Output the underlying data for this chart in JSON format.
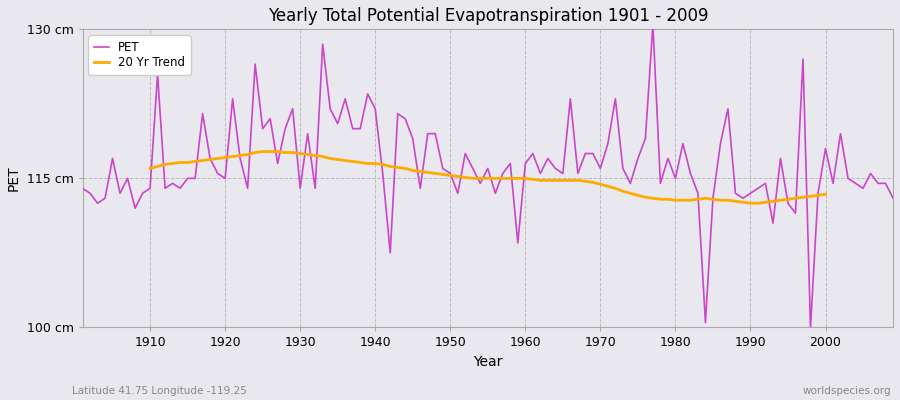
{
  "title": "Yearly Total Potential Evapotranspiration 1901 - 2009",
  "xlabel": "Year",
  "ylabel": "PET",
  "subtitle_left": "Latitude 41.75 Longitude -119.25",
  "subtitle_right": "worldspecies.org",
  "ylim": [
    100,
    130
  ],
  "xlim": [
    1901,
    2009
  ],
  "yticks": [
    100,
    115,
    130
  ],
  "ytick_labels": [
    "100 cm",
    "115 cm",
    "130 cm"
  ],
  "xticks": [
    1910,
    1920,
    1930,
    1940,
    1950,
    1960,
    1970,
    1980,
    1990,
    2000
  ],
  "pet_color": "#cc44cc",
  "trend_color": "#ffaa00",
  "bg_color": "#e8e8ee",
  "pet_label": "PET",
  "trend_label": "20 Yr Trend",
  "years": [
    1901,
    1902,
    1903,
    1904,
    1905,
    1906,
    1907,
    1908,
    1909,
    1910,
    1911,
    1912,
    1913,
    1914,
    1915,
    1916,
    1917,
    1918,
    1919,
    1920,
    1921,
    1922,
    1923,
    1924,
    1925,
    1926,
    1927,
    1928,
    1929,
    1930,
    1931,
    1932,
    1933,
    1934,
    1935,
    1936,
    1937,
    1938,
    1939,
    1940,
    1941,
    1942,
    1943,
    1944,
    1945,
    1946,
    1947,
    1948,
    1949,
    1950,
    1951,
    1952,
    1953,
    1954,
    1955,
    1956,
    1957,
    1958,
    1959,
    1960,
    1961,
    1962,
    1963,
    1964,
    1965,
    1966,
    1967,
    1968,
    1969,
    1970,
    1971,
    1972,
    1973,
    1974,
    1975,
    1976,
    1977,
    1978,
    1979,
    1980,
    1981,
    1982,
    1983,
    1984,
    1985,
    1986,
    1987,
    1988,
    1989,
    1990,
    1991,
    1992,
    1993,
    1994,
    1995,
    1996,
    1997,
    1998,
    1999,
    2000,
    2001,
    2002,
    2003,
    2004,
    2005,
    2006,
    2007,
    2008,
    2009
  ],
  "pet_values": [
    114.0,
    113.5,
    112.5,
    113.0,
    117.0,
    113.5,
    115.0,
    112.0,
    113.5,
    114.0,
    125.5,
    114.0,
    114.5,
    114.0,
    115.0,
    115.0,
    121.5,
    117.0,
    115.5,
    115.0,
    123.0,
    117.0,
    114.0,
    126.5,
    120.0,
    121.0,
    116.5,
    120.0,
    122.0,
    114.0,
    119.5,
    114.0,
    128.5,
    122.0,
    120.5,
    123.0,
    120.0,
    120.0,
    123.5,
    122.0,
    115.5,
    107.5,
    121.5,
    121.0,
    119.0,
    114.0,
    119.5,
    119.5,
    116.0,
    115.5,
    113.5,
    117.5,
    116.0,
    114.5,
    116.0,
    113.5,
    115.5,
    116.5,
    108.5,
    116.5,
    117.5,
    115.5,
    117.0,
    116.0,
    115.5,
    123.0,
    115.5,
    117.5,
    117.5,
    116.0,
    118.5,
    123.0,
    116.0,
    114.5,
    117.0,
    119.0,
    130.5,
    114.5,
    117.0,
    115.0,
    118.5,
    115.5,
    113.5,
    100.5,
    113.0,
    118.5,
    122.0,
    113.5,
    113.0,
    113.5,
    114.0,
    114.5,
    110.5,
    117.0,
    112.5,
    111.5,
    127.0,
    100.0,
    113.5,
    118.0,
    114.5,
    119.5,
    115.0,
    114.5,
    114.0,
    115.5,
    114.5,
    114.5,
    113.0
  ],
  "trend_years": [
    1910,
    1911,
    1912,
    1913,
    1914,
    1915,
    1916,
    1917,
    1918,
    1919,
    1920,
    1921,
    1922,
    1923,
    1924,
    1925,
    1926,
    1927,
    1928,
    1929,
    1930,
    1931,
    1932,
    1933,
    1934,
    1935,
    1936,
    1937,
    1938,
    1939,
    1940,
    1941,
    1942,
    1943,
    1944,
    1945,
    1946,
    1947,
    1948,
    1949,
    1950,
    1951,
    1952,
    1953,
    1954,
    1955,
    1956,
    1957,
    1958,
    1959,
    1960,
    1961,
    1962,
    1963,
    1964,
    1965,
    1966,
    1967,
    1968,
    1969,
    1970,
    1971,
    1972,
    1973,
    1974,
    1975,
    1976,
    1977,
    1978,
    1979,
    1980,
    1981,
    1982,
    1983,
    1984,
    1985,
    1986,
    1987,
    1988,
    1989,
    1990,
    1991,
    1992,
    1993,
    1994,
    1995,
    1996,
    1997,
    1998,
    1999,
    2000
  ],
  "trend_values": [
    116.0,
    116.2,
    116.4,
    116.5,
    116.6,
    116.6,
    116.7,
    116.8,
    116.9,
    117.0,
    117.1,
    117.2,
    117.3,
    117.4,
    117.6,
    117.7,
    117.7,
    117.7,
    117.6,
    117.6,
    117.5,
    117.4,
    117.3,
    117.2,
    117.0,
    116.9,
    116.8,
    116.7,
    116.6,
    116.5,
    116.5,
    116.4,
    116.2,
    116.1,
    116.0,
    115.8,
    115.7,
    115.6,
    115.5,
    115.4,
    115.3,
    115.2,
    115.1,
    115.0,
    115.0,
    115.0,
    115.0,
    115.0,
    115.0,
    115.0,
    115.0,
    114.9,
    114.8,
    114.8,
    114.8,
    114.8,
    114.8,
    114.8,
    114.7,
    114.6,
    114.4,
    114.2,
    114.0,
    113.7,
    113.5,
    113.3,
    113.1,
    113.0,
    112.9,
    112.9,
    112.8,
    112.8,
    112.8,
    112.9,
    113.0,
    112.9,
    112.8,
    112.8,
    112.7,
    112.6,
    112.5,
    112.5,
    112.6,
    112.7,
    112.8,
    112.9,
    113.0,
    113.1,
    113.2,
    113.3,
    113.4
  ]
}
